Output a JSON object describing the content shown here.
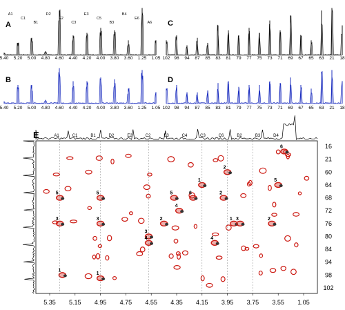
{
  "panels": {
    "a": {
      "letter": "A"
    },
    "b": {
      "letter": "B"
    },
    "c": {
      "letter": "C"
    },
    "d": {
      "letter": "D"
    },
    "e": {
      "letter": "E"
    }
  },
  "colors": {
    "top_trace": "#111111",
    "blue_trace": "#1d2fbf",
    "contour_red": "#cc1a12",
    "contour_dark": "#333333"
  },
  "chart_data": [
    {
      "type": "line",
      "panel": "A",
      "x": [
        5.4,
        5.2,
        5.0,
        4.8,
        4.6,
        4.4,
        4.2,
        4.0,
        3.8,
        3.6,
        1.25,
        1.05
      ],
      "tick_labels": [
        "5.40",
        "5.20",
        "5.00",
        "4.80",
        "4.60",
        "4.40",
        "4.20",
        "4.00",
        "3.80",
        "3.60",
        "1.25",
        "1.05"
      ],
      "peak_labels": [
        "A1",
        "C1",
        "B1",
        "D2",
        "E2",
        "C3",
        "E3",
        "C5",
        "B3",
        "B4",
        "E6",
        "A6"
      ],
      "series": [
        {
          "values": [
            0.05,
            0.25,
            0.35,
            0.08,
            0.9,
            0.4,
            0.45,
            0.55,
            0.5,
            0.3,
            0.95,
            0.3
          ]
        }
      ]
    },
    {
      "type": "line",
      "panel": "B",
      "x": [
        5.4,
        5.2,
        5.0,
        4.8,
        4.6,
        4.4,
        4.2,
        4.0,
        3.8,
        3.6,
        1.25,
        1.05
      ],
      "tick_labels": [
        "5.40",
        "5.20",
        "5.00",
        "4.80",
        "4.60",
        "4.40",
        "4.20",
        "4.00",
        "3.80",
        "3.60",
        "1.25",
        "1.05"
      ],
      "series": [
        {
          "values": [
            0.05,
            0.5,
            0.5,
            0.1,
            0.95,
            0.6,
            0.6,
            0.7,
            0.65,
            0.4,
            0.9,
            0.3
          ]
        }
      ]
    },
    {
      "type": "line",
      "panel": "C",
      "x": [
        102,
        98,
        94,
        90,
        86,
        82,
        80,
        78,
        76,
        74,
        72,
        70,
        68,
        66,
        64,
        21,
        18,
        16
      ],
      "tick_labels": [
        "102",
        "98",
        "94",
        "87",
        "85",
        "83",
        "81",
        "79",
        "77",
        "75",
        "73",
        "71",
        "69",
        "67",
        "65",
        "63",
        "21",
        "18"
      ],
      "series": [
        {
          "values": [
            0.3,
            0.4,
            0.2,
            0.35,
            0.25,
            0.6,
            0.5,
            0.4,
            0.55,
            0.45,
            0.7,
            0.5,
            0.8,
            0.4,
            0.3,
            0.9,
            0.95,
            0.6
          ]
        }
      ]
    },
    {
      "type": "line",
      "panel": "D",
      "x": [
        102,
        98,
        94,
        90,
        86,
        82,
        80,
        78,
        76,
        74,
        72,
        70,
        68,
        66,
        64,
        21,
        18,
        16
      ],
      "tick_labels": [
        "102",
        "98",
        "94",
        "87",
        "85",
        "83",
        "81",
        "79",
        "77",
        "75",
        "73",
        "71",
        "69",
        "67",
        "65",
        "63",
        "21",
        "18"
      ],
      "series": [
        {
          "values": [
            0.4,
            0.5,
            0.3,
            0.3,
            0.35,
            0.55,
            0.6,
            0.45,
            0.5,
            0.5,
            0.6,
            0.55,
            0.7,
            0.5,
            0.4,
            0.85,
            0.9,
            0.6
          ]
        }
      ]
    },
    {
      "type": "heatmap",
      "panel": "E",
      "x_tick_labels": [
        "5.35",
        "5.15",
        "4.95",
        "4.75",
        "4.55",
        "4.35",
        "4.15",
        "3.95",
        "3.75",
        "3.55",
        "1.05"
      ],
      "y_tick_labels": [
        "16",
        "21",
        "60",
        "64",
        "68",
        "72",
        "76",
        "80",
        "84",
        "94",
        "98",
        "102"
      ],
      "top_labels": [
        "A1",
        "C1",
        "B1",
        "D2",
        "E2",
        "C2",
        "E3",
        "C4",
        "C3",
        "C6",
        "B2",
        "B3",
        "D4"
      ],
      "cross_peak_labels": [
        "1",
        "2",
        "3",
        "4",
        "5",
        "6"
      ],
      "cross_peaks": [
        {
          "x": 5.27,
          "y": 68,
          "label": "5"
        },
        {
          "x": 5.27,
          "y": 76,
          "label": "3"
        },
        {
          "x": 5.25,
          "y": 98,
          "label": "1"
        },
        {
          "x": 4.95,
          "y": 68,
          "label": "5"
        },
        {
          "x": 4.95,
          "y": 76,
          "label": "3"
        },
        {
          "x": 4.95,
          "y": 99,
          "label": "1"
        },
        {
          "x": 4.57,
          "y": 80,
          "label": "3"
        },
        {
          "x": 4.57,
          "y": 82,
          "label": "4"
        },
        {
          "x": 4.45,
          "y": 76,
          "label": "2"
        },
        {
          "x": 4.37,
          "y": 68,
          "label": "5"
        },
        {
          "x": 4.33,
          "y": 72,
          "label": "4"
        },
        {
          "x": 4.22,
          "y": 68,
          "label": "6"
        },
        {
          "x": 4.15,
          "y": 64,
          "label": "1"
        },
        {
          "x": 4.05,
          "y": 82,
          "label": "4"
        },
        {
          "x": 3.98,
          "y": 68,
          "label": "2"
        },
        {
          "x": 3.95,
          "y": 60,
          "label": "2"
        },
        {
          "x": 3.9,
          "y": 76,
          "label": "1"
        },
        {
          "x": 3.85,
          "y": 76,
          "label": "3"
        },
        {
          "x": 3.6,
          "y": 76,
          "label": "2"
        },
        {
          "x": 3.55,
          "y": 64,
          "label": "5"
        },
        {
          "x": 1.2,
          "y": 18,
          "label": "6"
        }
      ]
    }
  ]
}
